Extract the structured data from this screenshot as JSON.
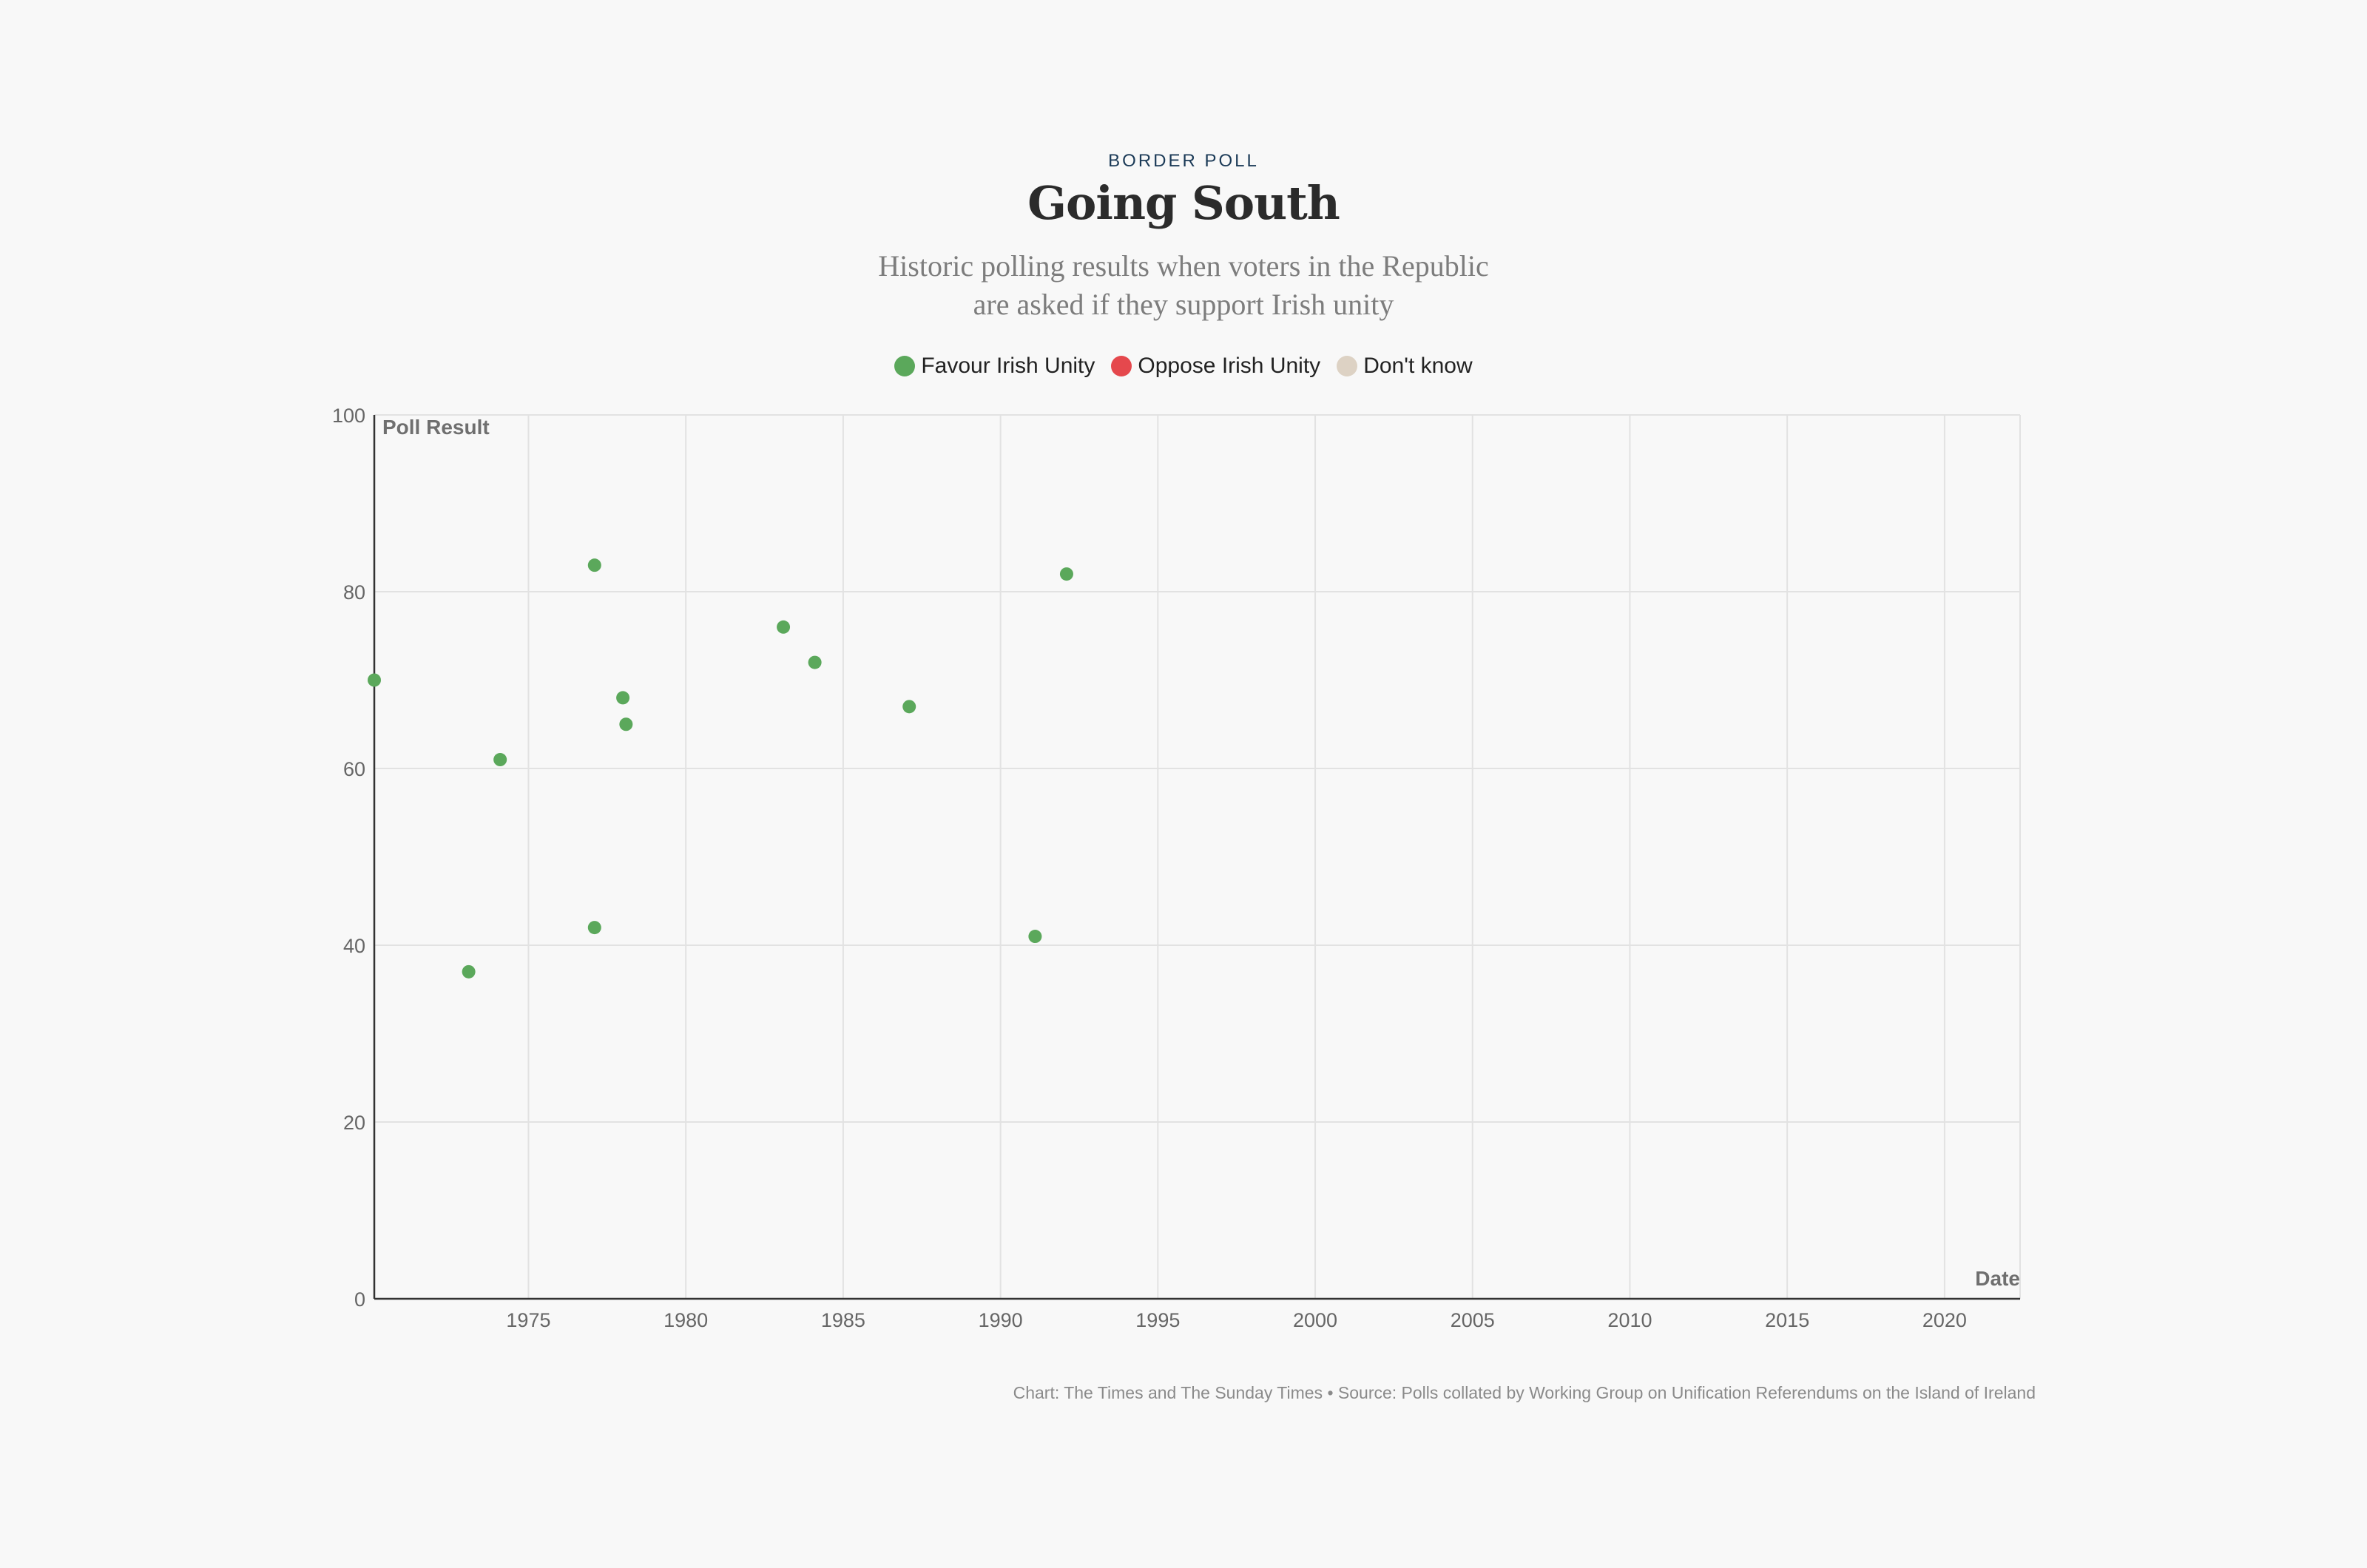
{
  "header": {
    "kicker": "BORDER POLL",
    "title": "Going South",
    "subtitle_line1": "Historic polling results when voters in the Republic",
    "subtitle_line2": "are asked if they support Irish unity"
  },
  "legend": [
    {
      "label": "Favour Irish Unity",
      "color": "#5ba85b"
    },
    {
      "label": "Oppose Irish Unity",
      "color": "#e5484d"
    },
    {
      "label": "Don't know",
      "color": "#ddd2c4"
    }
  ],
  "footer": {
    "credit": "Chart: The Times and The Sunday Times • Source: Polls collated by Working Group on Unification Referendums on the Island of Ireland"
  },
  "chart_data": {
    "type": "scatter",
    "ylabel": "Poll Result",
    "xlabel": "Date",
    "xlim": [
      1970.1,
      2022.4
    ],
    "ylim": [
      0,
      100
    ],
    "xticks": [
      1975,
      1980,
      1985,
      1990,
      1995,
      2000,
      2005,
      2010,
      2015,
      2020
    ],
    "yticks": [
      0,
      20,
      40,
      60,
      80,
      100
    ],
    "grid": true,
    "legend_position": "top-center",
    "series": [
      {
        "name": "Favour Irish Unity",
        "color": "#5ba85b",
        "points": [
          {
            "x": 1970.1,
            "y": 70
          },
          {
            "x": 1973.1,
            "y": 37
          },
          {
            "x": 1974.1,
            "y": 61
          },
          {
            "x": 1977.1,
            "y": 83
          },
          {
            "x": 1977.1,
            "y": 42
          },
          {
            "x": 1978.0,
            "y": 68
          },
          {
            "x": 1978.1,
            "y": 65
          },
          {
            "x": 1983.1,
            "y": 76
          },
          {
            "x": 1984.1,
            "y": 72
          },
          {
            "x": 1987.1,
            "y": 67
          },
          {
            "x": 1991.1,
            "y": 41
          },
          {
            "x": 1992.1,
            "y": 82
          }
        ]
      },
      {
        "name": "Oppose Irish Unity",
        "color": "#e5484d",
        "points": []
      },
      {
        "name": "Don't know",
        "color": "#ddd2c4",
        "points": []
      }
    ]
  }
}
